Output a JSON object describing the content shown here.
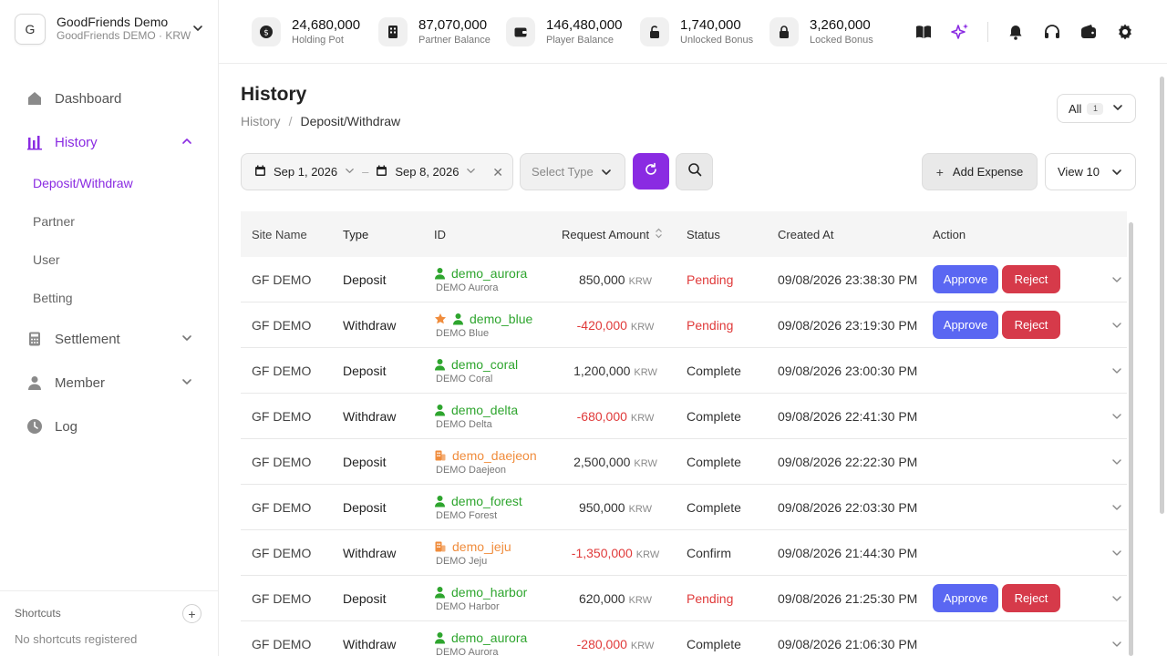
{
  "org": {
    "avatar_letter": "G",
    "name": "GoodFriends Demo",
    "sub": "GoodFriends DEMO · KRW"
  },
  "nav": {
    "dashboard": "Dashboard",
    "history": "History",
    "deposit_withdraw": "Deposit/Withdraw",
    "partner": "Partner",
    "user": "User",
    "betting": "Betting",
    "settlement": "Settlement",
    "member": "Member",
    "log": "Log"
  },
  "shortcuts": {
    "title": "Shortcuts",
    "empty": "No shortcuts registered",
    "add": "+"
  },
  "stats": [
    {
      "value": "24,680,000",
      "label": "Holding Pot"
    },
    {
      "value": "87,070,000",
      "label": "Partner Balance"
    },
    {
      "value": "146,480,000",
      "label": "Player Balance"
    },
    {
      "value": "1,740,000",
      "label": "Unlocked Bonus"
    },
    {
      "value": "3,260,000",
      "label": "Locked Bonus"
    }
  ],
  "page": {
    "title": "History",
    "breadcrumb_parent": "History",
    "breadcrumb_sep": "/",
    "breadcrumb_current": "Deposit/Withdraw",
    "all_label": "All",
    "all_count": "1"
  },
  "filters": {
    "date_from": "Sep 1, 2026",
    "date_dash": "–",
    "date_to": "Sep 8, 2026",
    "clear": "✕",
    "select_type_placeholder": "Select Type",
    "add_expense": "Add Expense",
    "view": "View 10"
  },
  "table": {
    "headers": {
      "site": "Site Name",
      "type": "Type",
      "id": "ID",
      "amount": "Request Amount",
      "status": "Status",
      "created": "Created At",
      "action": "Action"
    },
    "approve_label": "Approve",
    "reject_label": "Reject",
    "rows": [
      {
        "site": "GF DEMO",
        "type": "Deposit",
        "id": "demo_aurora",
        "name": "DEMO Aurora",
        "amount": "850,000",
        "currency": "KRW",
        "status": "Pending",
        "created": "09/08/2026 23:38:30 PM"
      },
      {
        "site": "GF DEMO",
        "type": "Withdraw",
        "id": "demo_blue",
        "name": "DEMO Blue",
        "amount": "-420,000",
        "currency": "KRW",
        "status": "Pending",
        "created": "09/08/2026 23:19:30 PM"
      },
      {
        "site": "GF DEMO",
        "type": "Deposit",
        "id": "demo_coral",
        "name": "DEMO Coral",
        "amount": "1,200,000",
        "currency": "KRW",
        "status": "Complete",
        "created": "09/08/2026 23:00:30 PM"
      },
      {
        "site": "GF DEMO",
        "type": "Withdraw",
        "id": "demo_delta",
        "name": "DEMO Delta",
        "amount": "-680,000",
        "currency": "KRW",
        "status": "Complete",
        "created": "09/08/2026 22:41:30 PM"
      },
      {
        "site": "GF DEMO",
        "type": "Deposit",
        "id": "demo_daejeon",
        "name": "DEMO Daejeon",
        "amount": "2,500,000",
        "currency": "KRW",
        "status": "Complete",
        "created": "09/08/2026 22:22:30 PM"
      },
      {
        "site": "GF DEMO",
        "type": "Deposit",
        "id": "demo_forest",
        "name": "DEMO Forest",
        "amount": "950,000",
        "currency": "KRW",
        "status": "Complete",
        "created": "09/08/2026 22:03:30 PM"
      },
      {
        "site": "GF DEMO",
        "type": "Withdraw",
        "id": "demo_jeju",
        "name": "DEMO Jeju",
        "amount": "-1,350,000",
        "currency": "KRW",
        "status": "Confirm",
        "created": "09/08/2026 21:44:30 PM"
      },
      {
        "site": "GF DEMO",
        "type": "Deposit",
        "id": "demo_harbor",
        "name": "DEMO Harbor",
        "amount": "620,000",
        "currency": "KRW",
        "status": "Pending",
        "created": "09/08/2026 21:25:30 PM"
      },
      {
        "site": "GF DEMO",
        "type": "Withdraw",
        "id": "demo_aurora",
        "name": "DEMO Aurora",
        "amount": "-280,000",
        "currency": "KRW",
        "status": "Complete",
        "created": "09/08/2026 21:06:30 PM"
      }
    ]
  },
  "colors": {
    "accent": "#8a2be2",
    "approve": "#5a67f2",
    "reject": "#d63a4a",
    "user_green": "#2ea52e",
    "partner_orange": "#f08c3c",
    "negative": "#e03a3a"
  }
}
